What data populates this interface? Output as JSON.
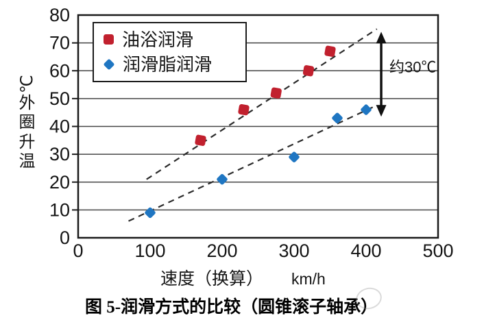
{
  "caption": "图 5-润滑方式的比较（圆锥滚子轴承）",
  "chart_data": {
    "type": "scatter",
    "title": "",
    "xlabel": "速度（换算）",
    "xunit": "km/h",
    "ylabel": "℃\n外\n圈\n升\n温",
    "xlim": [
      0,
      500
    ],
    "ylim": [
      0,
      80
    ],
    "xticks": [
      0,
      100,
      200,
      300,
      400,
      500
    ],
    "yticks": [
      0,
      10,
      20,
      30,
      40,
      50,
      60,
      70,
      80
    ],
    "grid": "horizontal",
    "legend_position": "top-left",
    "colors": {
      "grid": "#444444",
      "axis": "#1a1a1a",
      "text": "#141414",
      "trend": "#2b2b2b"
    },
    "series": [
      {
        "name": "油浴润滑",
        "marker": "square",
        "color": "#c1202e",
        "points": [
          [
            170,
            35
          ],
          [
            230,
            46
          ],
          [
            275,
            52
          ],
          [
            320,
            60
          ],
          [
            350,
            67
          ]
        ],
        "trend": [
          [
            95,
            21
          ],
          [
            415,
            75
          ]
        ]
      },
      {
        "name": "润滑脂润滑",
        "marker": "diamond",
        "color": "#1f76c2",
        "points": [
          [
            100,
            9
          ],
          [
            200,
            21
          ],
          [
            300,
            29
          ],
          [
            360,
            43
          ],
          [
            400,
            46
          ]
        ],
        "trend": [
          [
            70,
            6
          ],
          [
            410,
            47
          ]
        ]
      }
    ],
    "annotation": {
      "label": "约30℃",
      "arrow_x": 421,
      "arrow_y_from": 43.5,
      "arrow_y_to": 74
    }
  }
}
